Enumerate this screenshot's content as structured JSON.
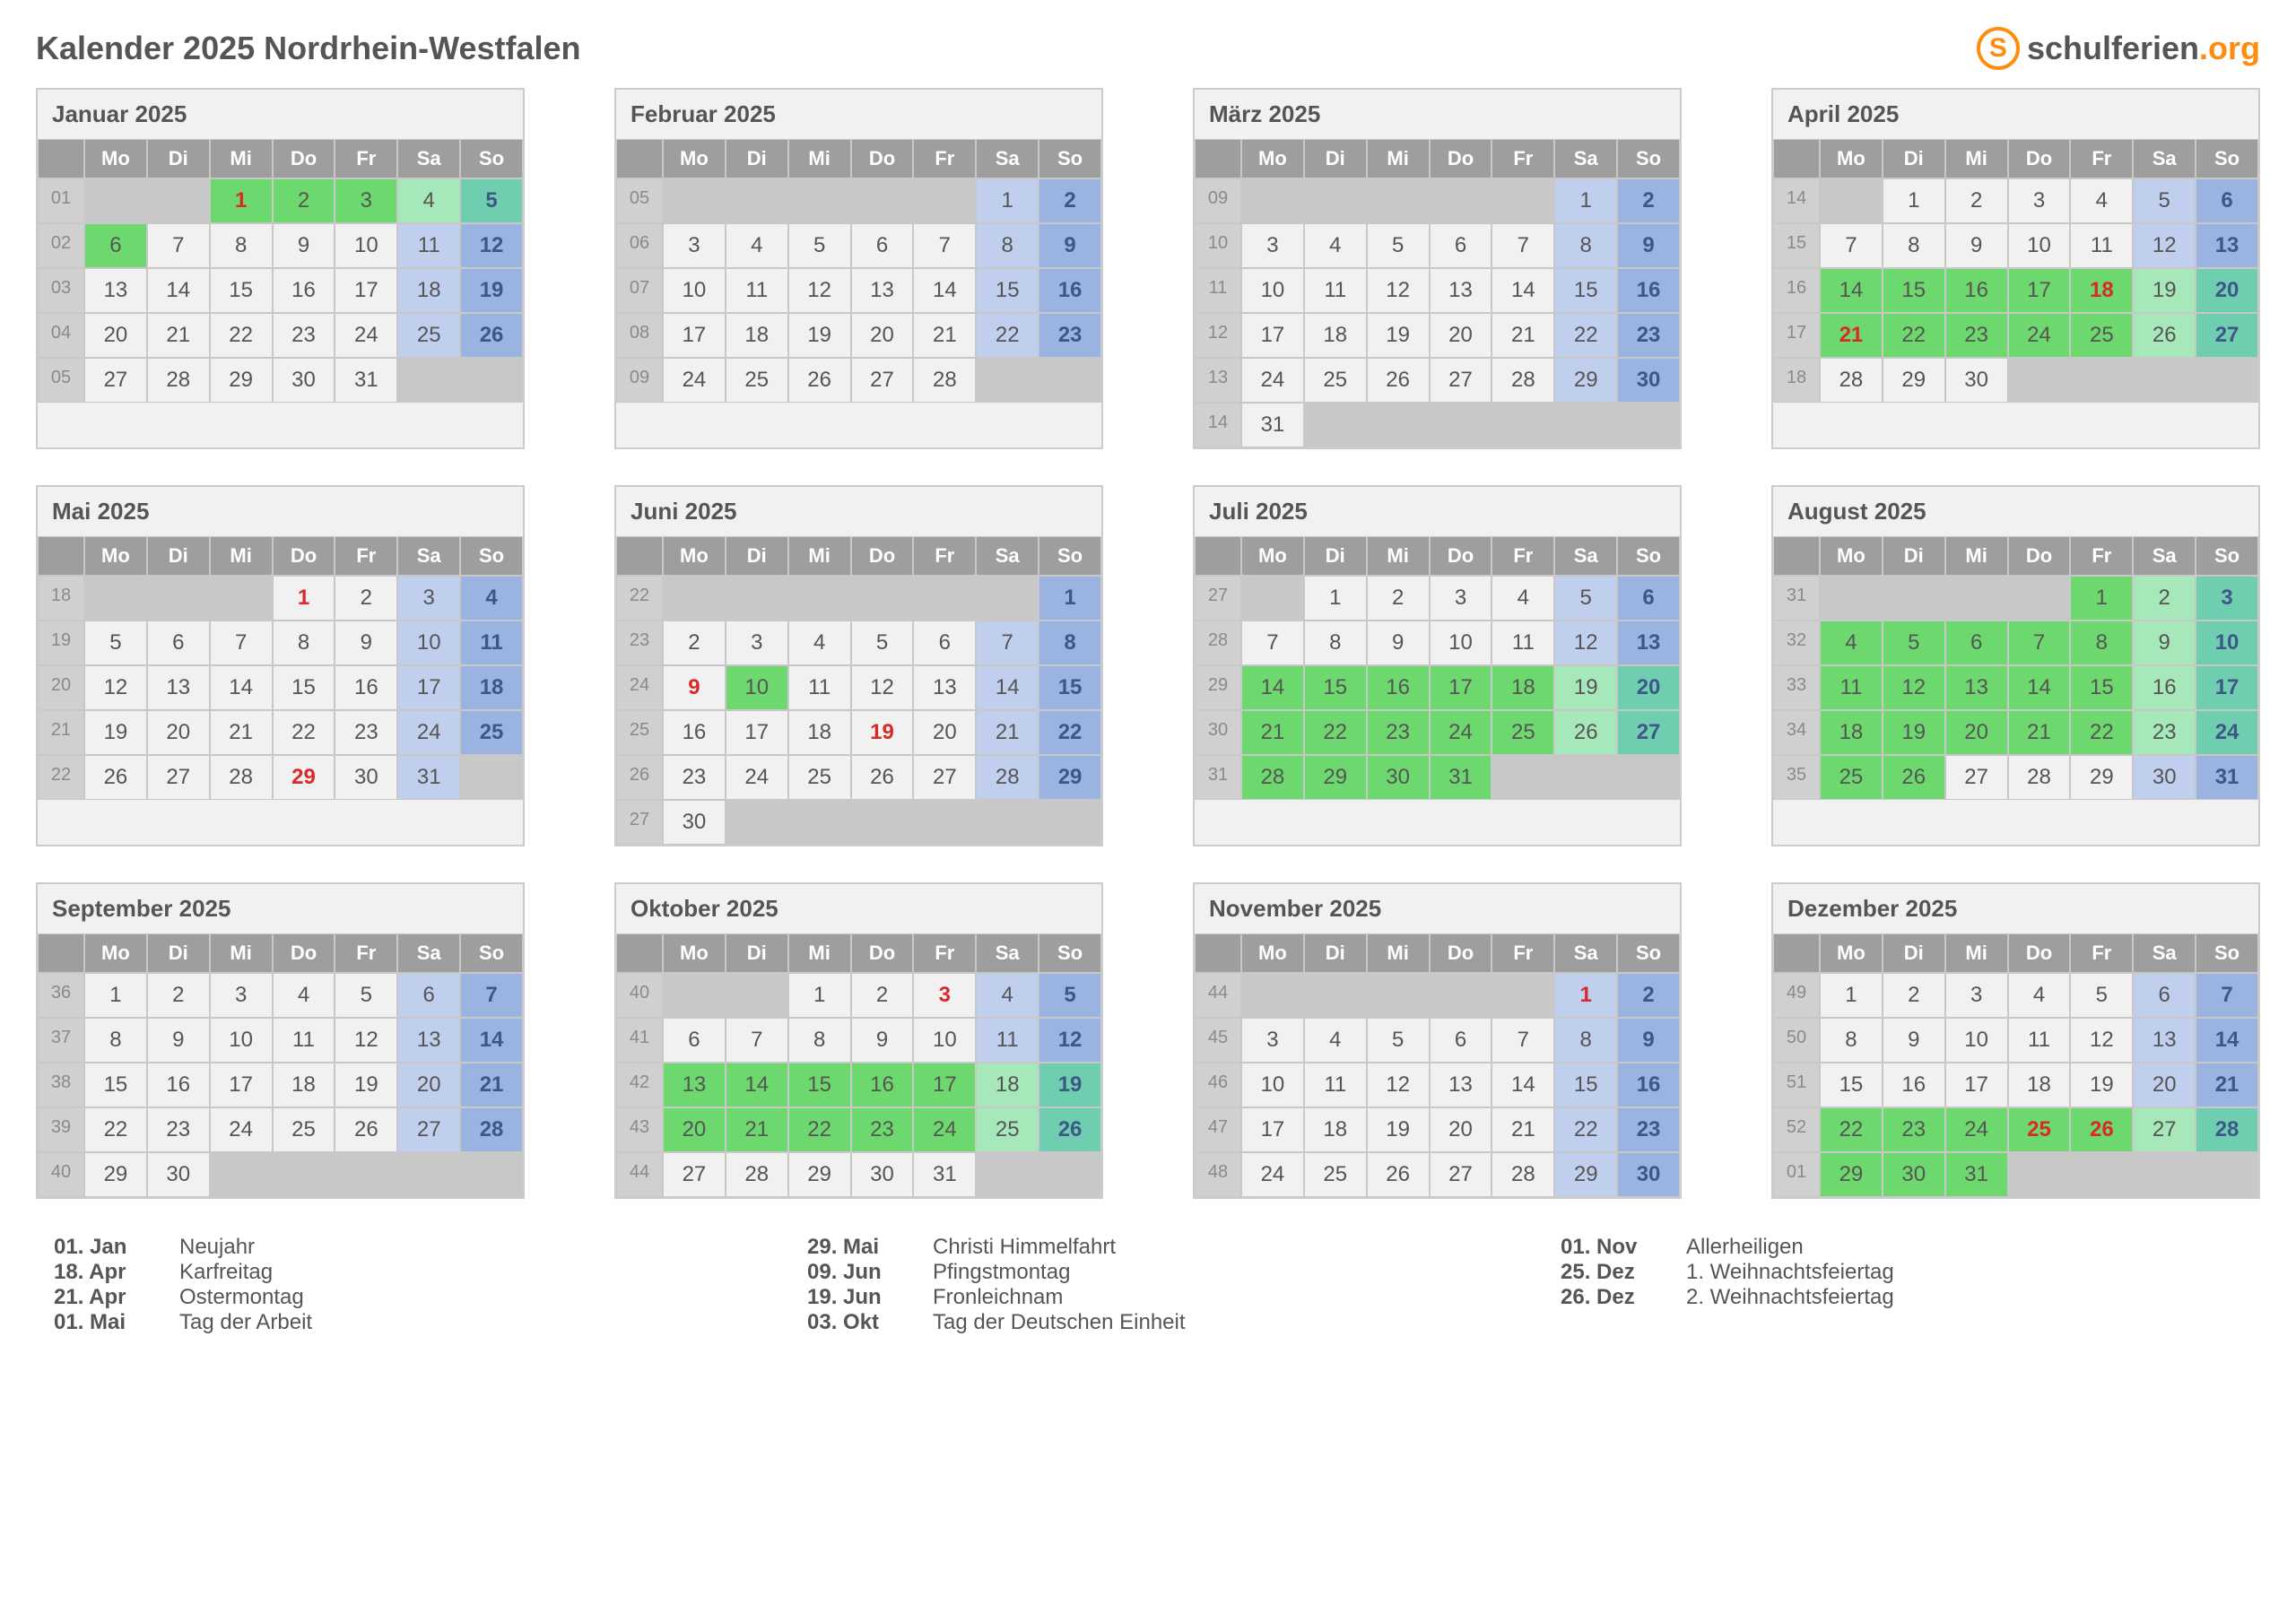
{
  "title": "Kalender 2025 Nordrhein-Westfalen",
  "logo": {
    "brand1": "schulferien",
    "brand2": ".org",
    "brand1_color": "#555555",
    "brand2_color": "#fd8d0e"
  },
  "colors": {
    "normal": "#f1f1f1",
    "green_light": "#a7e8bb",
    "green": "#6dd86d",
    "green_teal": "#6fceb0",
    "blue_light": "#c1cfee",
    "blue": "#9bb3e0",
    "blue_dark": "#748ebb",
    "holiday_text": "#d82a2a",
    "text": "#555555",
    "sunday_text": "#3d5887"
  },
  "dow": [
    "Mo",
    "Di",
    "Mi",
    "Do",
    "Fr",
    "Sa",
    "So"
  ],
  "months": [
    {
      "name": "Januar 2025",
      "weeks": [
        {
          "wk": "01",
          "d": [
            "",
            "",
            "1:h:green",
            "2:g",
            "3:g",
            "4:sa:gl",
            "5:su:gt"
          ]
        },
        {
          "wk": "02",
          "d": [
            "6:g",
            "7",
            "8",
            "9",
            "10",
            "11:sa:bl",
            "12:su:b"
          ]
        },
        {
          "wk": "03",
          "d": [
            "13",
            "14",
            "15",
            "16",
            "17",
            "18:sa:bl",
            "19:su:b"
          ]
        },
        {
          "wk": "04",
          "d": [
            "20",
            "21",
            "22",
            "23",
            "24",
            "25:sa:bl",
            "26:su:b"
          ]
        },
        {
          "wk": "05",
          "d": [
            "27",
            "28",
            "29",
            "30",
            "31",
            "",
            ""
          ]
        }
      ]
    },
    {
      "name": "Februar 2025",
      "weeks": [
        {
          "wk": "05",
          "d": [
            "",
            "",
            "",
            "",
            "",
            "1:sa:bl",
            "2:su:b"
          ]
        },
        {
          "wk": "06",
          "d": [
            "3",
            "4",
            "5",
            "6",
            "7",
            "8:sa:bl",
            "9:su:b"
          ]
        },
        {
          "wk": "07",
          "d": [
            "10",
            "11",
            "12",
            "13",
            "14",
            "15:sa:bl",
            "16:su:b"
          ]
        },
        {
          "wk": "08",
          "d": [
            "17",
            "18",
            "19",
            "20",
            "21",
            "22:sa:bl",
            "23:su:b"
          ]
        },
        {
          "wk": "09",
          "d": [
            "24",
            "25",
            "26",
            "27",
            "28",
            "",
            ""
          ]
        }
      ]
    },
    {
      "name": "März 2025",
      "weeks": [
        {
          "wk": "09",
          "d": [
            "",
            "",
            "",
            "",
            "",
            "1:sa:bl",
            "2:su:b"
          ]
        },
        {
          "wk": "10",
          "d": [
            "3",
            "4",
            "5",
            "6",
            "7",
            "8:sa:bl",
            "9:su:b"
          ]
        },
        {
          "wk": "11",
          "d": [
            "10",
            "11",
            "12",
            "13",
            "14",
            "15:sa:bl",
            "16:su:b"
          ]
        },
        {
          "wk": "12",
          "d": [
            "17",
            "18",
            "19",
            "20",
            "21",
            "22:sa:bl",
            "23:su:b"
          ]
        },
        {
          "wk": "13",
          "d": [
            "24",
            "25",
            "26",
            "27",
            "28",
            "29:sa:bl",
            "30:su:b"
          ]
        },
        {
          "wk": "14",
          "d": [
            "31",
            "",
            "",
            "",
            "",
            "",
            ""
          ]
        }
      ]
    },
    {
      "name": "April 2025",
      "weeks": [
        {
          "wk": "14",
          "d": [
            "",
            "1",
            "2",
            "3",
            "4",
            "5:sa:bl",
            "6:su:b"
          ]
        },
        {
          "wk": "15",
          "d": [
            "7",
            "8",
            "9",
            "10",
            "11",
            "12:sa:bl",
            "13:su:b"
          ]
        },
        {
          "wk": "16",
          "d": [
            "14:g",
            "15:g",
            "16:g",
            "17:g",
            "18:h:green",
            "19:sa:gl",
            "20:su:gt"
          ]
        },
        {
          "wk": "17",
          "d": [
            "21:h:green",
            "22:g",
            "23:g",
            "24:g",
            "25:g",
            "26:sa:gl",
            "27:su:gt"
          ]
        },
        {
          "wk": "18",
          "d": [
            "28",
            "29",
            "30",
            "",
            "",
            "",
            ""
          ]
        }
      ]
    },
    {
      "name": "Mai 2025",
      "weeks": [
        {
          "wk": "18",
          "d": [
            "",
            "",
            "",
            "1:h",
            "2",
            "3:sa:bl",
            "4:su:b"
          ]
        },
        {
          "wk": "19",
          "d": [
            "5",
            "6",
            "7",
            "8",
            "9",
            "10:sa:bl",
            "11:su:b"
          ]
        },
        {
          "wk": "20",
          "d": [
            "12",
            "13",
            "14",
            "15",
            "16",
            "17:sa:bl",
            "18:su:b"
          ]
        },
        {
          "wk": "21",
          "d": [
            "19",
            "20",
            "21",
            "22",
            "23",
            "24:sa:bl",
            "25:su:b"
          ]
        },
        {
          "wk": "22",
          "d": [
            "26",
            "27",
            "28",
            "29:h",
            "30",
            "31:sa:bl",
            ""
          ]
        }
      ]
    },
    {
      "name": "Juni 2025",
      "weeks": [
        {
          "wk": "22",
          "d": [
            "",
            "",
            "",
            "",
            "",
            "",
            "1:su:b"
          ]
        },
        {
          "wk": "23",
          "d": [
            "2",
            "3",
            "4",
            "5",
            "6",
            "7:sa:bl",
            "8:su:b"
          ]
        },
        {
          "wk": "24",
          "d": [
            "9:h",
            "10:g",
            "11",
            "12",
            "13",
            "14:sa:bl",
            "15:su:b"
          ]
        },
        {
          "wk": "25",
          "d": [
            "16",
            "17",
            "18",
            "19:h",
            "20",
            "21:sa:bl",
            "22:su:b"
          ]
        },
        {
          "wk": "26",
          "d": [
            "23",
            "24",
            "25",
            "26",
            "27",
            "28:sa:bl",
            "29:su:b"
          ]
        },
        {
          "wk": "27",
          "d": [
            "30",
            "",
            "",
            "",
            "",
            "",
            ""
          ]
        }
      ]
    },
    {
      "name": "Juli 2025",
      "weeks": [
        {
          "wk": "27",
          "d": [
            "",
            "1",
            "2",
            "3",
            "4",
            "5:sa:bl",
            "6:su:b"
          ]
        },
        {
          "wk": "28",
          "d": [
            "7",
            "8",
            "9",
            "10",
            "11",
            "12:sa:bl",
            "13:su:b"
          ]
        },
        {
          "wk": "29",
          "d": [
            "14:g",
            "15:g",
            "16:g",
            "17:g",
            "18:g",
            "19:sa:gl",
            "20:su:gt"
          ]
        },
        {
          "wk": "30",
          "d": [
            "21:g",
            "22:g",
            "23:g",
            "24:g",
            "25:g",
            "26:sa:gl",
            "27:su:gt"
          ]
        },
        {
          "wk": "31",
          "d": [
            "28:g",
            "29:g",
            "30:g",
            "31:g",
            "",
            "",
            ""
          ]
        }
      ]
    },
    {
      "name": "August 2025",
      "weeks": [
        {
          "wk": "31",
          "d": [
            "",
            "",
            "",
            "",
            "1:g",
            "2:sa:gl",
            "3:su:gt"
          ]
        },
        {
          "wk": "32",
          "d": [
            "4:g",
            "5:g",
            "6:g",
            "7:g",
            "8:g",
            "9:sa:gl",
            "10:su:gt"
          ]
        },
        {
          "wk": "33",
          "d": [
            "11:g",
            "12:g",
            "13:g",
            "14:g",
            "15:g",
            "16:sa:gl",
            "17:su:gt"
          ]
        },
        {
          "wk": "34",
          "d": [
            "18:g",
            "19:g",
            "20:g",
            "21:g",
            "22:g",
            "23:sa:gl",
            "24:su:gt"
          ]
        },
        {
          "wk": "35",
          "d": [
            "25:g",
            "26:g",
            "27",
            "28",
            "29",
            "30:sa:bl",
            "31:su:b"
          ]
        }
      ]
    },
    {
      "name": "September 2025",
      "weeks": [
        {
          "wk": "36",
          "d": [
            "1",
            "2",
            "3",
            "4",
            "5",
            "6:sa:bl",
            "7:su:b"
          ]
        },
        {
          "wk": "37",
          "d": [
            "8",
            "9",
            "10",
            "11",
            "12",
            "13:sa:bl",
            "14:su:b"
          ]
        },
        {
          "wk": "38",
          "d": [
            "15",
            "16",
            "17",
            "18",
            "19",
            "20:sa:bl",
            "21:su:b"
          ]
        },
        {
          "wk": "39",
          "d": [
            "22",
            "23",
            "24",
            "25",
            "26",
            "27:sa:bl",
            "28:su:b"
          ]
        },
        {
          "wk": "40",
          "d": [
            "29",
            "30",
            "",
            "",
            "",
            "",
            ""
          ]
        }
      ]
    },
    {
      "name": "Oktober 2025",
      "weeks": [
        {
          "wk": "40",
          "d": [
            "",
            "",
            "1",
            "2",
            "3:h",
            "4:sa:bl",
            "5:su:b"
          ]
        },
        {
          "wk": "41",
          "d": [
            "6",
            "7",
            "8",
            "9",
            "10",
            "11:sa:bl",
            "12:su:b"
          ]
        },
        {
          "wk": "42",
          "d": [
            "13:g",
            "14:g",
            "15:g",
            "16:g",
            "17:g",
            "18:sa:gl",
            "19:su:gt"
          ]
        },
        {
          "wk": "43",
          "d": [
            "20:g",
            "21:g",
            "22:g",
            "23:g",
            "24:g",
            "25:sa:gl",
            "26:su:gt"
          ]
        },
        {
          "wk": "44",
          "d": [
            "27",
            "28",
            "29",
            "30",
            "31",
            "",
            ""
          ]
        }
      ]
    },
    {
      "name": "November 2025",
      "weeks": [
        {
          "wk": "44",
          "d": [
            "",
            "",
            "",
            "",
            "",
            "1:h:bl",
            "2:su:b"
          ]
        },
        {
          "wk": "45",
          "d": [
            "3",
            "4",
            "5",
            "6",
            "7",
            "8:sa:bl",
            "9:su:b"
          ]
        },
        {
          "wk": "46",
          "d": [
            "10",
            "11",
            "12",
            "13",
            "14",
            "15:sa:bl",
            "16:su:b"
          ]
        },
        {
          "wk": "47",
          "d": [
            "17",
            "18",
            "19",
            "20",
            "21",
            "22:sa:bl",
            "23:su:b"
          ]
        },
        {
          "wk": "48",
          "d": [
            "24",
            "25",
            "26",
            "27",
            "28",
            "29:sa:bl",
            "30:su:b"
          ]
        }
      ]
    },
    {
      "name": "Dezember 2025",
      "weeks": [
        {
          "wk": "49",
          "d": [
            "1",
            "2",
            "3",
            "4",
            "5",
            "6:sa:bl",
            "7:su:b"
          ]
        },
        {
          "wk": "50",
          "d": [
            "8",
            "9",
            "10",
            "11",
            "12",
            "13:sa:bl",
            "14:su:b"
          ]
        },
        {
          "wk": "51",
          "d": [
            "15",
            "16",
            "17",
            "18",
            "19",
            "20:sa:bl",
            "21:su:b"
          ]
        },
        {
          "wk": "52",
          "d": [
            "22:g",
            "23:g",
            "24:g",
            "25:h:green",
            "26:h:green",
            "27:sa:gl",
            "28:su:gt"
          ]
        },
        {
          "wk": "01",
          "d": [
            "29:g",
            "30:g",
            "31:g",
            "",
            "",
            "",
            ""
          ]
        }
      ]
    }
  ],
  "legend": [
    [
      {
        "d": "01. Jan",
        "t": "Neujahr"
      },
      {
        "d": "18. Apr",
        "t": "Karfreitag"
      },
      {
        "d": "21. Apr",
        "t": "Ostermontag"
      },
      {
        "d": "01. Mai",
        "t": "Tag der Arbeit"
      }
    ],
    [
      {
        "d": "29. Mai",
        "t": "Christi Himmelfahrt"
      },
      {
        "d": "09. Jun",
        "t": "Pfingstmontag"
      },
      {
        "d": "19. Jun",
        "t": "Fronleichnam"
      },
      {
        "d": "03. Okt",
        "t": "Tag der Deutschen Einheit"
      }
    ],
    [
      {
        "d": "01. Nov",
        "t": "Allerheiligen"
      },
      {
        "d": "25. Dez",
        "t": "1. Weihnachtsfeiertag"
      },
      {
        "d": "26. Dez",
        "t": "2. Weihnachtsfeiertag"
      }
    ]
  ]
}
